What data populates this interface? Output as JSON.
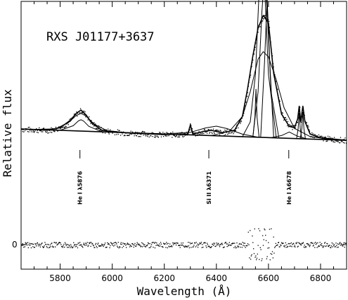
{
  "chart_data": {
    "type": "line",
    "title": "RXS J01177+3637",
    "xlabel": "Wavelength (Å)",
    "ylabel": "Relative flux",
    "xlim": [
      5650,
      6900
    ],
    "x_ticks": [
      5800,
      6000,
      6200,
      6400,
      6600,
      6800
    ],
    "x_tick_labels": [
      "5800",
      "6000",
      "6200",
      "6400",
      "6600",
      "6800"
    ],
    "y_zero_label": "0",
    "grid": false,
    "series": [
      {
        "role": "continuum",
        "x": [
          5650,
          6900
        ],
        "y": [
          1.0,
          0.55
        ]
      },
      {
        "role": "broad-emission-component",
        "x": [
          5700,
          5780,
          5830,
          5860,
          5880,
          5900,
          5930,
          5980,
          6050
        ],
        "y": [
          0.0,
          0.05,
          0.3,
          0.6,
          0.7,
          0.6,
          0.3,
          0.05,
          0.0
        ]
      },
      {
        "role": "narrow-emission-component",
        "x": [
          5800,
          5850,
          5870,
          5880,
          5890,
          5910,
          5960
        ],
        "y": [
          0.0,
          0.2,
          0.4,
          0.45,
          0.4,
          0.2,
          0.0
        ]
      },
      {
        "role": "broad-emission-component",
        "x": [
          6200,
          6300,
          6360,
          6400,
          6440,
          6500,
          6560
        ],
        "y": [
          0.0,
          0.1,
          0.3,
          0.38,
          0.3,
          0.1,
          0.0
        ]
      },
      {
        "role": "broad-emission-component",
        "x": [
          6380,
          6450,
          6500,
          6530,
          6560,
          6580,
          6600,
          6630,
          6660,
          6700,
          6760,
          6850
        ],
        "y": [
          0.0,
          0.2,
          0.8,
          1.8,
          3.1,
          3.4,
          3.2,
          2.3,
          1.2,
          0.4,
          0.1,
          0.0
        ]
      },
      {
        "role": "narrow-emission-component",
        "x": [
          6500,
          6530,
          6550,
          6565,
          6575,
          6585,
          6600,
          6630
        ],
        "y": [
          0.0,
          0.6,
          2.5,
          6.0,
          7.0,
          6.0,
          2.5,
          0.0
        ]
      },
      {
        "role": "narrow-emission-component",
        "x": [
          6540,
          6560,
          6575,
          6585,
          6595,
          6610,
          6640
        ],
        "y": [
          0.0,
          1.8,
          5.0,
          6.5,
          5.0,
          1.8,
          0.0
        ]
      },
      {
        "role": "narrow-emission-component",
        "x": [
          6570,
          6585,
          6595,
          6605,
          6620
        ],
        "y": [
          0.0,
          3.0,
          5.5,
          3.0,
          0.0
        ]
      },
      {
        "role": "narrow-emission-component",
        "x": [
          6540,
          6548,
          6552,
          6556,
          6564
        ],
        "y": [
          0.0,
          0.8,
          1.9,
          0.8,
          0.0
        ]
      },
      {
        "role": "narrow-emission-component",
        "x": [
          6610,
          6650,
          6680,
          6710,
          6750
        ],
        "y": [
          0.0,
          0.1,
          0.25,
          0.1,
          0.0
        ]
      },
      {
        "role": "narrow-emission-component",
        "x": [
          6708,
          6714,
          6718,
          6722,
          6728
        ],
        "y": [
          0.0,
          0.4,
          1.0,
          0.4,
          0.0
        ]
      },
      {
        "role": "narrow-emission-component",
        "x": [
          6722,
          6728,
          6732,
          6736,
          6742
        ],
        "y": [
          0.0,
          0.4,
          1.05,
          0.4,
          0.0
        ]
      },
      {
        "role": "narrow-emission-component",
        "x": [
          6290,
          6296,
          6300,
          6304,
          6310
        ],
        "y": [
          0.0,
          0.2,
          0.45,
          0.2,
          0.0
        ]
      },
      {
        "role": "total-fit",
        "x": [
          5650,
          5750,
          5800,
          5840,
          5860,
          5880,
          5900,
          5920,
          5960,
          6050,
          6200,
          6290,
          6300,
          6310,
          6350,
          6380,
          6420,
          6470,
          6500,
          6520,
          6540,
          6560,
          6580,
          6600,
          6620,
          6650,
          6680,
          6700,
          6712,
          6718,
          6724,
          6732,
          6740,
          6760,
          6800,
          6850,
          6900
        ],
        "y": [
          1.0,
          0.95,
          1.05,
          1.35,
          1.6,
          1.75,
          1.55,
          1.25,
          0.95,
          0.85,
          0.78,
          0.8,
          1.15,
          0.8,
          0.9,
          0.95,
          0.85,
          0.95,
          1.5,
          2.6,
          3.9,
          5.0,
          5.5,
          5.2,
          3.2,
          1.6,
          1.1,
          1.05,
          1.4,
          1.9,
          1.3,
          1.9,
          1.3,
          0.8,
          0.65,
          0.6,
          0.55
        ]
      }
    ],
    "annotations": [
      {
        "text": "He I λ5876",
        "x": 5876
      },
      {
        "text": "Si II λ6371",
        "x": 6371
      },
      {
        "text": "He I λ6678",
        "x": 6678
      }
    ],
    "residuals_zero_level": 0
  }
}
